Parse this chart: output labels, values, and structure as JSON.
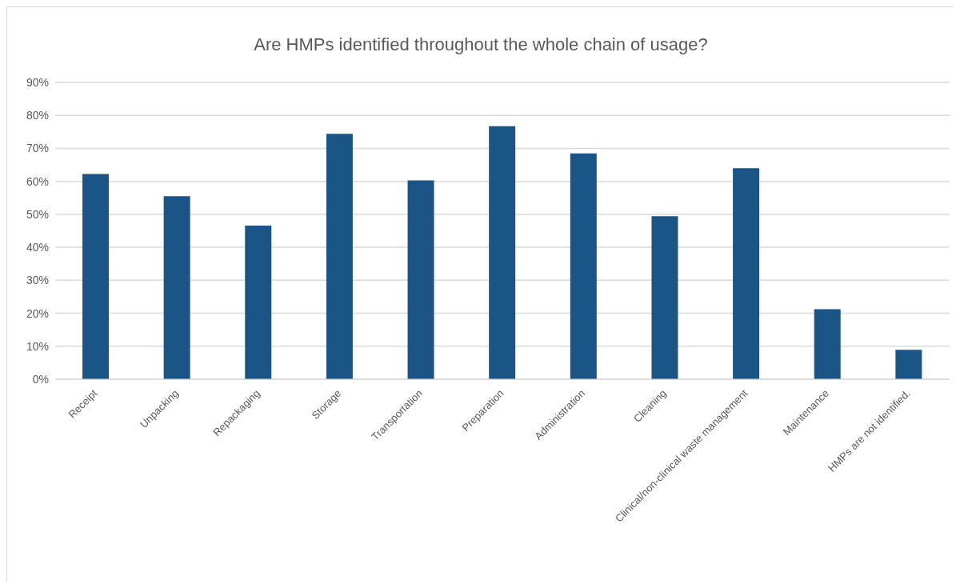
{
  "chart_data": {
    "type": "bar",
    "title": "Are HMPs identified throughout the whole chain of usage?",
    "categories": [
      "Receipt",
      "Unpacking",
      "Repackaging",
      "Storage",
      "Transportation",
      "Preparation",
      "Administration",
      "Cleaning",
      "Clinical/non-clinical waste management",
      "Maintenance",
      "HMPs are not identified."
    ],
    "values": [
      62.2,
      55.5,
      46.6,
      74.4,
      60.3,
      76.7,
      68.5,
      49.4,
      64.0,
      21.2,
      8.9
    ],
    "color": "#1a5586",
    "ylim": [
      0,
      90
    ],
    "yticks": [
      {
        "value": 0,
        "label": "0%"
      },
      {
        "value": 10,
        "label": "10%"
      },
      {
        "value": 20,
        "label": "20%"
      },
      {
        "value": 30,
        "label": "30%"
      },
      {
        "value": 40,
        "label": "40%"
      },
      {
        "value": 50,
        "label": "50%"
      },
      {
        "value": 60,
        "label": "60%"
      },
      {
        "value": 70,
        "label": "70%"
      },
      {
        "value": 80,
        "label": "80%"
      },
      {
        "value": 90,
        "label": "90%"
      }
    ],
    "grid": "y"
  }
}
